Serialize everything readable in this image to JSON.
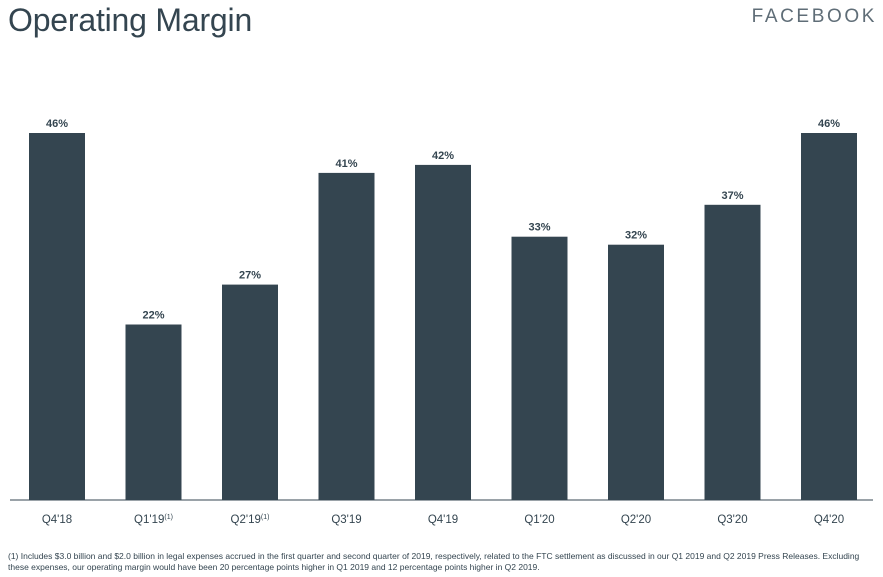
{
  "header": {
    "title": "Operating Margin",
    "brand": "FACEBOOK"
  },
  "footnote": {
    "text": "(1) Includes $3.0 billion and $2.0 billion in legal expenses accrued in the first quarter and second quarter of 2019, respectively, related to the FTC settlement as discussed in our Q1 2019 and Q2 2019 Press Releases. Excluding these expenses, our operating margin would have been 20 percentage points higher in Q1 2019 and 12 percentage points higher in Q2 2019."
  },
  "colors": {
    "bar": "#344550",
    "axis": "#344550",
    "text": "#344550"
  },
  "chart_data": {
    "type": "bar",
    "title": "Operating Margin",
    "categories": [
      "Q4'18",
      "Q1'19",
      "Q2'19",
      "Q3'19",
      "Q4'19",
      "Q1'20",
      "Q2'20",
      "Q3'20",
      "Q4'20"
    ],
    "category_superscripts": [
      "",
      "(1)",
      "(1)",
      "",
      "",
      "",
      "",
      "",
      ""
    ],
    "values": [
      46,
      22,
      27,
      41,
      42,
      33,
      32,
      37,
      46
    ],
    "value_labels": [
      "46%",
      "22%",
      "27%",
      "41%",
      "42%",
      "33%",
      "32%",
      "37%",
      "46%"
    ],
    "ylim": [
      0,
      46
    ],
    "grid": false,
    "legend": "none"
  }
}
